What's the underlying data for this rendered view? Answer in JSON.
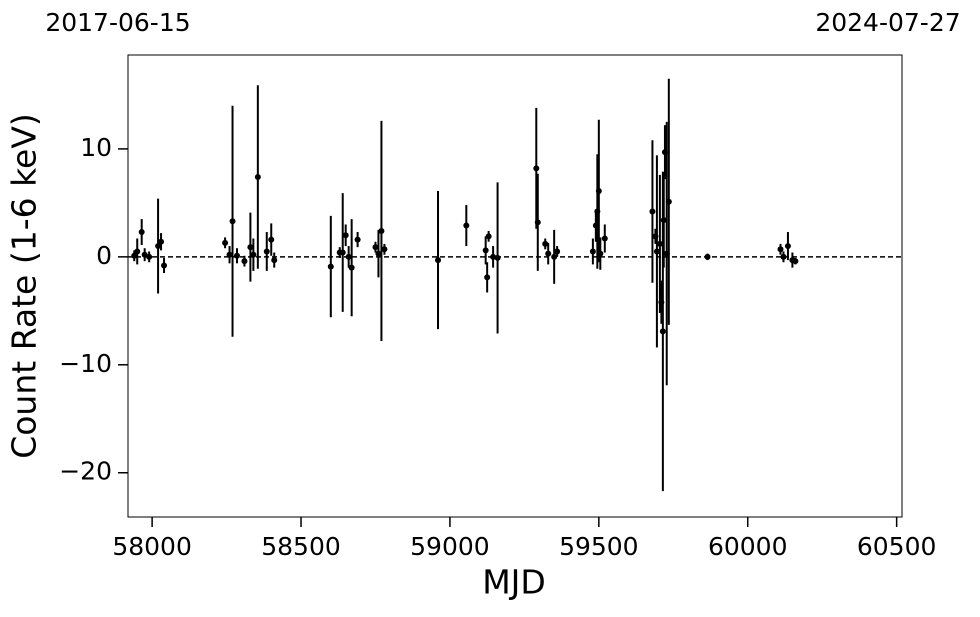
{
  "chart_data": {
    "type": "errorbar",
    "annotations": [
      "2017-06-15",
      "2024-07-27"
    ],
    "xlabel": "MJD",
    "ylabel": "Count Rate (1-6 keV)",
    "xlim": [
      57919,
      60518
    ],
    "ylim": [
      -24.1,
      18.7
    ],
    "xticks": [
      58000,
      58500,
      59000,
      59500,
      60000,
      60500
    ],
    "yticks": [
      {
        "value": -20,
        "label": "−20"
      },
      {
        "value": -10,
        "label": "−10"
      },
      0,
      10
    ],
    "reference_line": 0,
    "color": "#000000",
    "x": [
      57940,
      57950,
      57965,
      57975,
      57990,
      58020,
      58030,
      58040,
      58245,
      58260,
      58270,
      58285,
      58310,
      58330,
      58340,
      58355,
      58385,
      58400,
      58410,
      58600,
      58630,
      58640,
      58650,
      58660,
      58670,
      58690,
      58750,
      58760,
      58770,
      58780,
      58960,
      59055,
      59120,
      59125,
      59130,
      59145,
      59160,
      59290,
      59295,
      59320,
      59330,
      59350,
      59360,
      59480,
      59490,
      59495,
      59500,
      59505,
      59520,
      59680,
      59690,
      59695,
      59705,
      59710,
      59715,
      59718,
      59722,
      59728,
      59735,
      59865,
      60110,
      60120,
      60135,
      60150,
      60160
    ],
    "values": [
      0.1,
      0.5,
      2.3,
      0.2,
      0.0,
      1.0,
      1.4,
      -0.8,
      1.3,
      0.2,
      3.3,
      0.1,
      -0.4,
      0.9,
      0.2,
      7.4,
      0.5,
      1.6,
      -0.3,
      -0.9,
      0.4,
      0.4,
      2.0,
      0.0,
      -1.0,
      1.6,
      0.9,
      0.3,
      2.4,
      0.7,
      -0.3,
      2.9,
      0.6,
      -1.9,
      1.9,
      0.0,
      -0.1,
      8.2,
      3.2,
      1.2,
      0.3,
      0.0,
      0.5,
      0.5,
      2.9,
      4.2,
      6.1,
      0.3,
      1.7,
      4.2,
      1.9,
      0.5,
      1.2,
      -4.2,
      -6.9,
      3.4,
      9.7,
      0.3,
      5.1,
      0.0,
      0.7,
      0.0,
      1.0,
      -0.3,
      -0.4
    ],
    "errors": [
      0.5,
      1.2,
      1.2,
      0.6,
      0.5,
      4.4,
      0.8,
      0.7,
      0.5,
      0.8,
      10.7,
      0.7,
      0.5,
      3.2,
      1.5,
      8.5,
      1.8,
      1.5,
      0.7,
      4.7,
      0.5,
      5.5,
      1.0,
      1.0,
      4.5,
      0.7,
      0.5,
      2.2,
      10.2,
      0.5,
      6.4,
      1.9,
      1.3,
      1.4,
      0.5,
      1.0,
      7.0,
      5.6,
      4.5,
      0.5,
      1.0,
      2.5,
      0.5,
      1.2,
      1.5,
      5.3,
      6.6,
      1.5,
      1.3,
      6.6,
      0.7,
      8.9,
      6.4,
      2.0,
      14.8,
      4.4,
      2.5,
      12.2,
      11.4,
      0.3,
      0.5,
      0.5,
      1.3,
      0.7,
      0.3
    ]
  }
}
